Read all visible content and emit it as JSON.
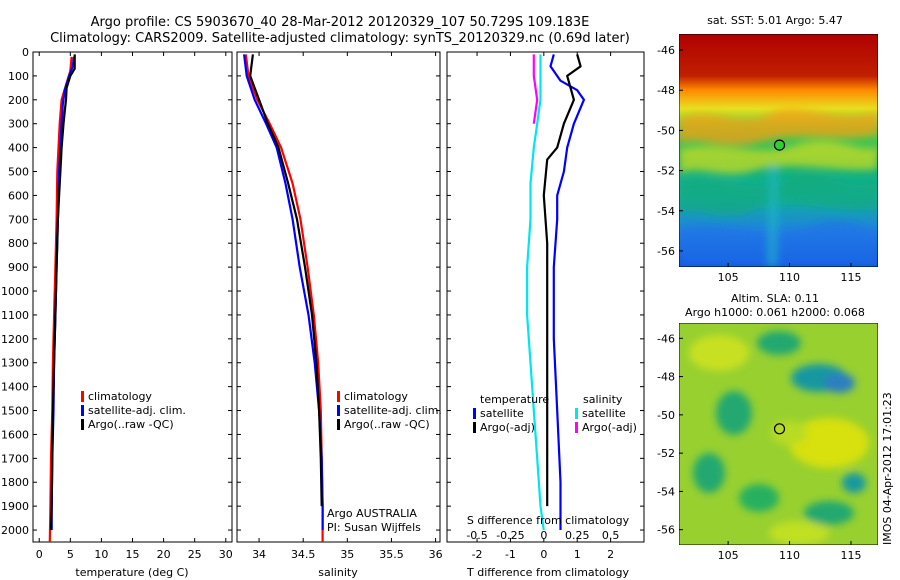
{
  "header": {
    "line1": "Argo profile: CS 5903670_40 28-Mar-2012 20120329_107 50.729S 109.183E",
    "line2": "Climatology: CARS2009. Satellite-adjusted climatology: synTS_20120329.nc (0.69d later)"
  },
  "depth_ticks": [
    "0",
    "100",
    "200",
    "300",
    "400",
    "500",
    "600",
    "700",
    "800",
    "900",
    "1000",
    "1100",
    "1200",
    "1300",
    "1400",
    "1500",
    "1600",
    "1700",
    "1800",
    "1900",
    "2000"
  ],
  "colors": {
    "climatology": "#ff0000",
    "satellite": "#0000ff",
    "argo": "#000000",
    "sal_sat": "#00e5ee",
    "sal_argo": "#ff00ff"
  },
  "chart_data": [
    {
      "type": "line",
      "xlabel": "temperature (deg C)",
      "xlim": [
        -1,
        31
      ],
      "ylim": [
        2050,
        0
      ],
      "y_reversed": true,
      "xticks": [
        "0",
        "5",
        "10",
        "15",
        "20",
        "25",
        "30"
      ],
      "xtick_values": [
        0,
        5,
        10,
        15,
        20,
        25,
        30
      ],
      "legend": [
        "climatology",
        "satellite-adj. clim.",
        "Argo(..raw -QC)"
      ],
      "series": [
        {
          "name": "climatology",
          "color": "#ff0000",
          "points": [
            [
              5.2,
              20
            ],
            [
              5.0,
              80
            ],
            [
              4.4,
              130
            ],
            [
              3.6,
              200
            ],
            [
              3.3,
              300
            ],
            [
              3.1,
              400
            ],
            [
              2.9,
              500
            ],
            [
              2.8,
              700
            ],
            [
              2.6,
              900
            ],
            [
              2.4,
              1100
            ],
            [
              2.2,
              1300
            ],
            [
              2.1,
              1500
            ],
            [
              1.9,
              1700
            ],
            [
              1.8,
              1900
            ],
            [
              1.7,
              2050
            ]
          ]
        },
        {
          "name": "satellite-adj. clim.",
          "color": "#0000ff",
          "points": [
            [
              5.6,
              20
            ],
            [
              5.4,
              60
            ],
            [
              4.8,
              100
            ],
            [
              4.1,
              160
            ],
            [
              3.8,
              220
            ],
            [
              3.6,
              300
            ],
            [
              3.4,
              400
            ],
            [
              3.2,
              500
            ],
            [
              3.0,
              700
            ],
            [
              2.8,
              900
            ],
            [
              2.6,
              1100
            ],
            [
              2.4,
              1300
            ],
            [
              2.3,
              1500
            ],
            [
              2.1,
              1700
            ],
            [
              2.0,
              1900
            ],
            [
              2.0,
              2000
            ]
          ]
        },
        {
          "name": "Argo(..raw -QC)",
          "color": "#000000",
          "points": [
            [
              5.7,
              10
            ],
            [
              5.7,
              70
            ],
            [
              5.0,
              100
            ],
            [
              4.4,
              150
            ],
            [
              4.3,
              200
            ],
            [
              4.1,
              250
            ],
            [
              3.9,
              300
            ],
            [
              3.6,
              400
            ],
            [
              3.4,
              500
            ],
            [
              3.2,
              600
            ],
            [
              3.0,
              700
            ],
            [
              2.8,
              900
            ],
            [
              2.6,
              1100
            ],
            [
              2.4,
              1300
            ],
            [
              2.2,
              1500
            ],
            [
              2.1,
              1700
            ],
            [
              2.0,
              1900
            ],
            [
              1.9,
              2000
            ]
          ]
        }
      ]
    },
    {
      "type": "line",
      "xlabel": "salinity",
      "xlim": [
        33.75,
        36.05
      ],
      "ylim": [
        2050,
        0
      ],
      "y_reversed": true,
      "xticks": [
        "34",
        "34.5",
        "35",
        "35.5",
        "36"
      ],
      "xtick_values": [
        34,
        34.5,
        35,
        35.5,
        36
      ],
      "legend": [
        "climatology",
        "satellite-adj. clim.",
        "Argo(..raw -QC)"
      ],
      "annotation": [
        "Argo AUSTRALIA",
        "PI: Susan Wijffels"
      ],
      "series": [
        {
          "name": "climatology",
          "color": "#ff0000",
          "points": [
            [
              33.85,
              10
            ],
            [
              33.88,
              100
            ],
            [
              33.98,
              200
            ],
            [
              34.12,
              300
            ],
            [
              34.25,
              400
            ],
            [
              34.38,
              550
            ],
            [
              34.47,
              700
            ],
            [
              34.55,
              900
            ],
            [
              34.62,
              1100
            ],
            [
              34.67,
              1300
            ],
            [
              34.7,
              1500
            ],
            [
              34.71,
              1700
            ],
            [
              34.72,
              1900
            ],
            [
              34.72,
              2050
            ]
          ]
        },
        {
          "name": "satellite-adj. clim.",
          "color": "#0000ff",
          "points": [
            [
              33.83,
              10
            ],
            [
              33.86,
              100
            ],
            [
              33.95,
              200
            ],
            [
              34.08,
              300
            ],
            [
              34.2,
              400
            ],
            [
              34.3,
              550
            ],
            [
              34.38,
              700
            ],
            [
              34.46,
              900
            ],
            [
              34.56,
              1100
            ],
            [
              34.63,
              1300
            ],
            [
              34.68,
              1500
            ],
            [
              34.71,
              1700
            ],
            [
              34.72,
              1900
            ],
            [
              34.72,
              2000
            ]
          ]
        },
        {
          "name": "Argo(..raw -QC)",
          "color": "#000000",
          "points": [
            [
              33.93,
              10
            ],
            [
              33.9,
              100
            ],
            [
              34.0,
              200
            ],
            [
              34.1,
              300
            ],
            [
              34.22,
              400
            ],
            [
              34.33,
              550
            ],
            [
              34.43,
              700
            ],
            [
              34.52,
              900
            ],
            [
              34.6,
              1100
            ],
            [
              34.65,
              1300
            ],
            [
              34.68,
              1500
            ],
            [
              34.7,
              1700
            ],
            [
              34.71,
              1900
            ]
          ]
        }
      ]
    },
    {
      "type": "line",
      "xlabel": "T difference from climatology",
      "xlabel2": "S difference from climatology",
      "xlim": [
        -2.9,
        3.0
      ],
      "ylim": [
        2050,
        0
      ],
      "y_reversed": true,
      "xticks": [
        "-2",
        "-1",
        "0",
        "1",
        "2"
      ],
      "xtick_values": [
        -2,
        -1,
        0,
        1,
        2
      ],
      "xticks_top": [
        "-0.5",
        "-0.25",
        "0",
        "0.25",
        "0.5"
      ],
      "xticks_top_values": [
        -2,
        -1,
        0,
        1,
        2
      ],
      "legend_titles": [
        "temperature",
        "salinity"
      ],
      "legend": [
        "satellite",
        "Argo(-adj)",
        "satellite",
        "Argo(-adj)"
      ],
      "series": [
        {
          "name": "satellite",
          "color": "#0000ff",
          "points": [
            [
              0.3,
              10
            ],
            [
              0.2,
              60
            ],
            [
              0.5,
              120
            ],
            [
              1.0,
              160
            ],
            [
              1.2,
              200
            ],
            [
              0.9,
              300
            ],
            [
              0.7,
              400
            ],
            [
              0.6,
              500
            ],
            [
              0.4,
              600
            ],
            [
              0.4,
              700
            ],
            [
              0.3,
              900
            ],
            [
              0.3,
              1200
            ],
            [
              0.4,
              1500
            ],
            [
              0.5,
              1800
            ],
            [
              0.5,
              2000
            ]
          ]
        },
        {
          "name": "Argo(-adj)",
          "color": "#000000",
          "points": [
            [
              1.0,
              10
            ],
            [
              1.1,
              60
            ],
            [
              0.7,
              100
            ],
            [
              0.9,
              200
            ],
            [
              0.6,
              300
            ],
            [
              0.4,
              400
            ],
            [
              0.1,
              450
            ],
            [
              0.0,
              600
            ],
            [
              0.1,
              800
            ],
            [
              0.1,
              1000
            ],
            [
              0.1,
              1300
            ],
            [
              0.1,
              1600
            ],
            [
              0.1,
              1900
            ]
          ]
        },
        {
          "name": "satellite",
          "color": "#00e5ee",
          "points": [
            [
              -0.1,
              10
            ],
            [
              -0.1,
              200
            ],
            [
              -0.2,
              300
            ],
            [
              -0.3,
              400
            ],
            [
              -0.4,
              550
            ],
            [
              -0.4,
              700
            ],
            [
              -0.5,
              900
            ],
            [
              -0.5,
              1100
            ],
            [
              -0.4,
              1300
            ],
            [
              -0.3,
              1500
            ],
            [
              -0.2,
              1700
            ],
            [
              -0.1,
              1900
            ],
            [
              0.0,
              2000
            ]
          ]
        },
        {
          "name": "Argo(-adj)",
          "color": "#ff00ff",
          "points": [
            [
              -0.3,
              10
            ],
            [
              -0.3,
              100
            ],
            [
              -0.2,
              200
            ],
            [
              -0.3,
              300
            ]
          ]
        }
      ]
    },
    {
      "type": "heatmap",
      "title": "sat. SST: 5.01 Argo: 5.47",
      "xticks": [
        "105",
        "110",
        "115"
      ],
      "xtick_values": [
        105,
        110,
        115
      ],
      "yticks": [
        "-46",
        "-48",
        "-50",
        "-52",
        "-54",
        "-56"
      ],
      "ytick_values": [
        -46,
        -48,
        -50,
        -52,
        -54,
        -56
      ],
      "xlim": [
        101,
        117.2
      ],
      "ylim": [
        -56.8,
        -45.2
      ],
      "marker": [
        109.183,
        -50.729
      ]
    },
    {
      "type": "heatmap",
      "title": "Altim. SLA: 0.11",
      "subtitle": "Argo h1000: 0.061 h2000: 0.068",
      "xticks": [
        "105",
        "110",
        "115"
      ],
      "xtick_values": [
        105,
        110,
        115
      ],
      "yticks": [
        "-46",
        "-48",
        "-50",
        "-52",
        "-54",
        "-56"
      ],
      "ytick_values": [
        -46,
        -48,
        -50,
        -52,
        -54,
        -56
      ],
      "xlim": [
        101,
        117.2
      ],
      "ylim": [
        -56.8,
        -45.2
      ],
      "marker": [
        109.183,
        -50.729
      ]
    }
  ],
  "stamp": "IMOS 04-Apr-2012 17:01:23"
}
